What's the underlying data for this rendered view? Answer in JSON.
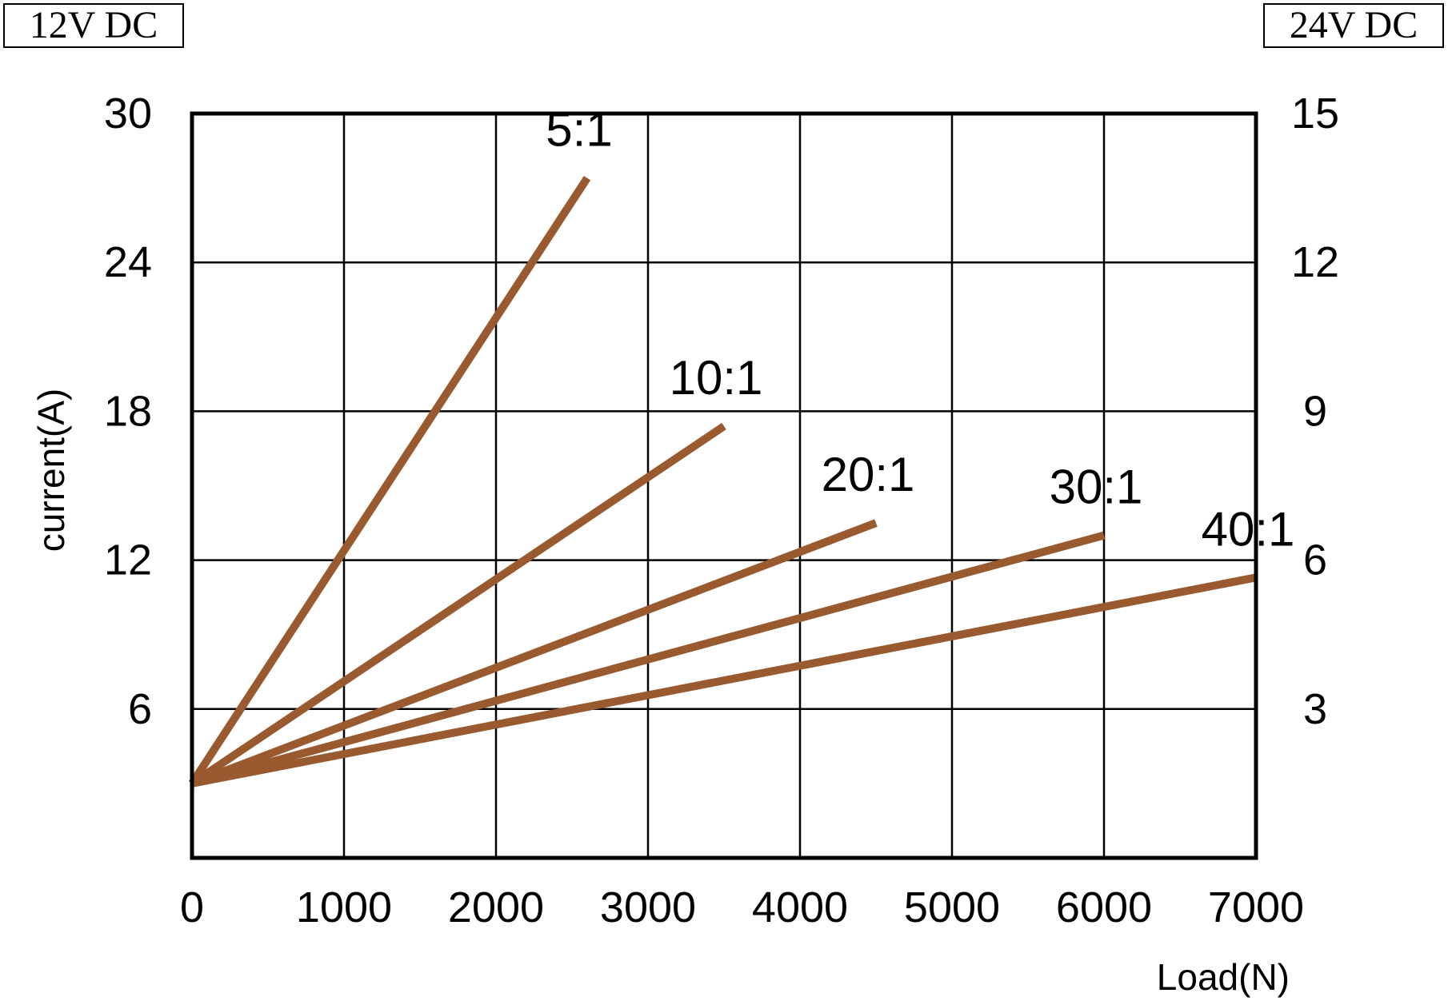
{
  "header": {
    "left_voltage": "12V DC",
    "right_voltage": "24V DC"
  },
  "chart_data": {
    "type": "line",
    "title": "",
    "xlabel": "Load(N)",
    "ylabel": "current(A)",
    "xlim": [
      0,
      7000
    ],
    "ylim": [
      0,
      30
    ],
    "y2lim": [
      0,
      15
    ],
    "x_ticks": [
      0,
      1000,
      2000,
      3000,
      4000,
      5000,
      6000,
      7000
    ],
    "y_ticks": [
      6,
      12,
      18,
      24,
      30
    ],
    "y2_ticks": [
      3,
      6,
      9,
      12,
      15
    ],
    "grid": true,
    "line_color": "#9a5a2f",
    "series": [
      {
        "name": "5:1",
        "x": [
          0,
          2600
        ],
        "y": [
          3.0,
          27.4
        ]
      },
      {
        "name": "10:1",
        "x": [
          0,
          3500
        ],
        "y": [
          3.0,
          17.4
        ]
      },
      {
        "name": "20:1",
        "x": [
          0,
          4500
        ],
        "y": [
          3.0,
          13.5
        ]
      },
      {
        "name": "30:1",
        "x": [
          0,
          6000
        ],
        "y": [
          3.0,
          13.0
        ]
      },
      {
        "name": "40:1",
        "x": [
          0,
          7000
        ],
        "y": [
          3.0,
          11.3
        ]
      }
    ]
  }
}
